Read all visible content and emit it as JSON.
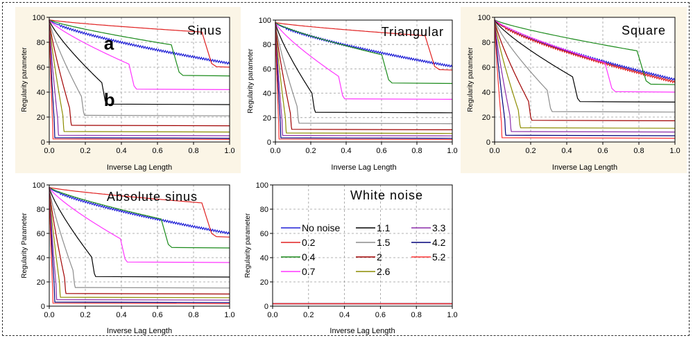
{
  "chart_data": [
    {
      "type": "line",
      "title": "Sinus",
      "xlabel": "Inverse Lag Length",
      "ylabel": "Regularity parameter",
      "xlim": [
        0,
        1
      ],
      "ylim": [
        0,
        100
      ],
      "xticks": [
        "0.0",
        "0.2",
        "0.4",
        "0.6",
        "0.8",
        "1.0"
      ],
      "yticks": [
        "0",
        "20",
        "40",
        "60",
        "80",
        "100"
      ],
      "annotations": [
        "a",
        "b"
      ],
      "series": [
        {
          "name": "No noise",
          "plateau": 63,
          "drop": 1.0
        },
        {
          "name": "0.2",
          "plateau": 60,
          "drop": 0.9
        },
        {
          "name": "0.4",
          "plateau": 53,
          "drop": 0.72
        },
        {
          "name": "0.7",
          "plateau": 42,
          "drop": 0.47
        },
        {
          "name": "1.1",
          "plateau": 30,
          "drop": 0.31
        },
        {
          "name": "1.5",
          "plateau": 21,
          "drop": 0.19
        },
        {
          "name": "2",
          "plateau": 13,
          "drop": 0.12
        },
        {
          "name": "2.6",
          "plateau": 8,
          "drop": 0.08
        },
        {
          "name": "3.3",
          "plateau": 5,
          "drop": 0.05
        },
        {
          "name": "4.2",
          "plateau": 3,
          "drop": 0.03
        },
        {
          "name": "5.2",
          "plateau": 2,
          "drop": 0.02
        }
      ]
    },
    {
      "type": "line",
      "title": "Triangular",
      "xlabel": "Inverse Lag Length",
      "ylabel": "Regularity parameter",
      "xlim": [
        0,
        1
      ],
      "ylim": [
        0,
        100
      ],
      "xticks": [
        "0.0",
        "0.2",
        "0.4",
        "0.6",
        "0.8",
        "1.0"
      ],
      "yticks": [
        "0",
        "20",
        "40",
        "60",
        "80",
        "100"
      ],
      "series": [
        {
          "name": "No noise",
          "plateau": 62,
          "drop": 1.0
        },
        {
          "name": "0.2",
          "plateau": 59,
          "drop": 0.9
        },
        {
          "name": "0.4",
          "plateau": 48,
          "drop": 0.64
        },
        {
          "name": "0.7",
          "plateau": 35,
          "drop": 0.38
        },
        {
          "name": "1.1",
          "plateau": 24,
          "drop": 0.22
        },
        {
          "name": "1.5",
          "plateau": 15,
          "drop": 0.13
        },
        {
          "name": "2",
          "plateau": 10,
          "drop": 0.09
        },
        {
          "name": "2.6",
          "plateau": 7,
          "drop": 0.06
        },
        {
          "name": "3.3",
          "plateau": 5,
          "drop": 0.04
        },
        {
          "name": "4.2",
          "plateau": 3,
          "drop": 0.03
        },
        {
          "name": "5.2",
          "plateau": 2,
          "drop": 0.02
        }
      ]
    },
    {
      "type": "line",
      "title": "Square",
      "xlabel": "Inverse Lag Length",
      "ylabel": "Regularity parameter",
      "xlim": [
        0,
        1
      ],
      "ylim": [
        0,
        100
      ],
      "xticks": [
        "0.0",
        "0.2",
        "0.4",
        "0.6",
        "0.8",
        "1.0"
      ],
      "yticks": [
        "0",
        "20",
        "40",
        "60",
        "80",
        "100"
      ],
      "series": [
        {
          "name": "No noise",
          "plateau": 50,
          "drop": 1.0
        },
        {
          "name": "0.2",
          "plateau": 48,
          "drop": 1.0
        },
        {
          "name": "0.4",
          "plateau": 46,
          "drop": 0.84
        },
        {
          "name": "0.7",
          "plateau": 40,
          "drop": 0.65
        },
        {
          "name": "1.1",
          "plateau": 32,
          "drop": 0.46
        },
        {
          "name": "1.5",
          "plateau": 24,
          "drop": 0.31
        },
        {
          "name": "2",
          "plateau": 17,
          "drop": 0.2
        },
        {
          "name": "2.6",
          "plateau": 11,
          "drop": 0.14
        },
        {
          "name": "3.3",
          "plateau": 8,
          "drop": 0.09
        },
        {
          "name": "4.2",
          "plateau": 5,
          "drop": 0.06
        },
        {
          "name": "5.2",
          "plateau": 3,
          "drop": 0.04
        }
      ]
    },
    {
      "type": "line",
      "title": "Absolute sinus",
      "xlabel": "Inverse Lag Length",
      "ylabel": "Regularity Parameter",
      "xlim": [
        0,
        1
      ],
      "ylim": [
        0,
        100
      ],
      "xticks": [
        "0.0",
        "0.2",
        "0.4",
        "0.6",
        "0.8",
        "1.0"
      ],
      "yticks": [
        "0",
        "20",
        "40",
        "60",
        "80",
        "100"
      ],
      "series": [
        {
          "name": "No noise",
          "plateau": 60,
          "drop": 1.0
        },
        {
          "name": "0.2",
          "plateau": 57,
          "drop": 0.9
        },
        {
          "name": "0.4",
          "plateau": 48,
          "drop": 0.66
        },
        {
          "name": "0.7",
          "plateau": 36,
          "drop": 0.42
        },
        {
          "name": "1.1",
          "plateau": 24,
          "drop": 0.25
        },
        {
          "name": "1.5",
          "plateau": 15,
          "drop": 0.14
        },
        {
          "name": "2",
          "plateau": 10,
          "drop": 0.09
        },
        {
          "name": "2.6",
          "plateau": 7,
          "drop": 0.06
        },
        {
          "name": "3.3",
          "plateau": 5,
          "drop": 0.04
        },
        {
          "name": "4.2",
          "plateau": 3,
          "drop": 0.03
        },
        {
          "name": "5.2",
          "plateau": 2,
          "drop": 0.02
        }
      ]
    },
    {
      "type": "line",
      "title": "White noise",
      "xlabel": "Inverse Lag Length",
      "ylabel": "Regularity parameter",
      "xlim": [
        0,
        1
      ],
      "ylim": [
        0,
        100
      ],
      "xticks": [
        "0.0",
        "0.2",
        "0.4",
        "0.6",
        "0.8",
        "1.0"
      ],
      "yticks": [
        "0",
        "20",
        "40",
        "60",
        "80",
        "100"
      ],
      "legend_placement": "center",
      "series": [
        {
          "name": "No noise",
          "plateau": 2,
          "drop": 0
        },
        {
          "name": "0.2",
          "plateau": 2,
          "drop": 0
        },
        {
          "name": "0.4",
          "plateau": 2,
          "drop": 0
        },
        {
          "name": "0.7",
          "plateau": 2,
          "drop": 0
        },
        {
          "name": "1.1",
          "plateau": 2,
          "drop": 0
        },
        {
          "name": "1.5",
          "plateau": 2,
          "drop": 0
        },
        {
          "name": "2",
          "plateau": 2,
          "drop": 0
        },
        {
          "name": "2.6",
          "plateau": 2,
          "drop": 0
        },
        {
          "name": "3.3",
          "plateau": 2,
          "drop": 0
        },
        {
          "name": "4.2",
          "plateau": 2,
          "drop": 0
        },
        {
          "name": "5.2",
          "plateau": 2,
          "drop": 0
        }
      ]
    }
  ],
  "series_colors": {
    "No noise": "#1f1fd6",
    "0.2": "#e02020",
    "0.4": "#1a8a1a",
    "0.7": "#ff33ff",
    "1.1": "#000000",
    "1.5": "#8c8c8c",
    "2": "#a00000",
    "2.6": "#8c8c00",
    "3.3": "#8a2ba8",
    "4.2": "#00007a",
    "5.2": "#ff3333"
  },
  "panel_background": "#fbf5e6"
}
